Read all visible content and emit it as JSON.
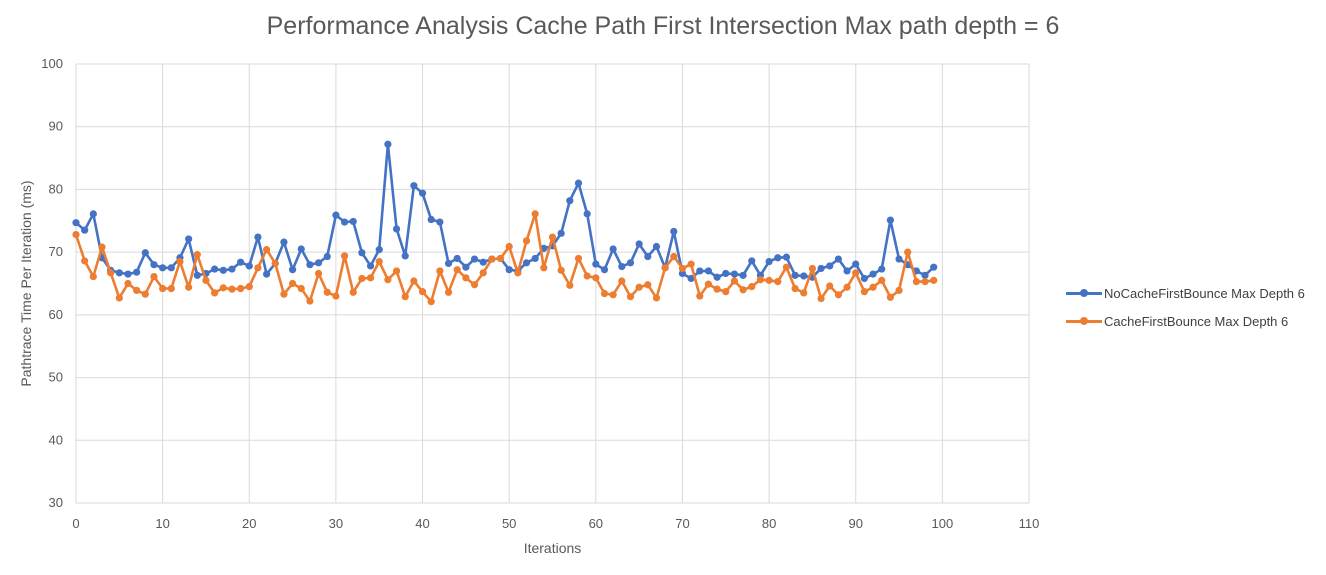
{
  "chart_data": {
    "type": "line",
    "title": "Performance Analysis Cache Path First Intersection Max path depth = 6",
    "xlabel": "Iterations",
    "ylabel": "Pathtrace Time Per Iteration (ms)",
    "xlim": [
      0,
      110
    ],
    "ylim": [
      30,
      100
    ],
    "xticks": [
      0,
      10,
      20,
      30,
      40,
      50,
      60,
      70,
      80,
      90,
      100,
      110
    ],
    "yticks": [
      30,
      40,
      50,
      60,
      70,
      80,
      90,
      100
    ],
    "grid": true,
    "legend_position": "right",
    "x": [
      0,
      1,
      2,
      3,
      4,
      5,
      6,
      7,
      8,
      9,
      10,
      11,
      12,
      13,
      14,
      15,
      16,
      17,
      18,
      19,
      20,
      21,
      22,
      23,
      24,
      25,
      26,
      27,
      28,
      29,
      30,
      31,
      32,
      33,
      34,
      35,
      36,
      37,
      38,
      39,
      40,
      41,
      42,
      43,
      44,
      45,
      46,
      47,
      48,
      49,
      50,
      51,
      52,
      53,
      54,
      55,
      56,
      57,
      58,
      59,
      60,
      61,
      62,
      63,
      64,
      65,
      66,
      67,
      68,
      69,
      70,
      71,
      72,
      73,
      74,
      75,
      76,
      77,
      78,
      79,
      80,
      81,
      82,
      83,
      84,
      85,
      86,
      87,
      88,
      89,
      90,
      91,
      92,
      93,
      94,
      95,
      96,
      97,
      98,
      99
    ],
    "series": [
      {
        "name": "NoCacheFirstBounce Max Depth 6",
        "color": "#4472C4",
        "values": [
          74.7,
          73.5,
          76.1,
          69.1,
          67.1,
          66.7,
          66.5,
          66.8,
          69.9,
          68.0,
          67.5,
          67.5,
          69.1,
          72.1,
          66.3,
          66.6,
          67.3,
          67.1,
          67.3,
          68.4,
          67.8,
          72.4,
          66.5,
          68.2,
          71.6,
          67.2,
          70.5,
          68.0,
          68.3,
          69.3,
          75.9,
          74.8,
          74.9,
          69.9,
          67.8,
          70.4,
          87.2,
          73.7,
          69.4,
          80.6,
          79.4,
          75.2,
          74.8,
          68.2,
          69.0,
          67.6,
          68.9,
          68.4,
          68.9,
          69.0,
          67.2,
          67.0,
          68.3,
          69.0,
          70.6,
          71.0,
          73.0,
          78.2,
          81.0,
          76.1,
          68.1,
          67.2,
          70.5,
          67.7,
          68.3,
          71.3,
          69.3,
          70.9,
          67.5,
          73.3,
          66.6,
          65.8,
          67.0,
          67.0,
          66.0,
          66.6,
          66.5,
          66.3,
          68.6,
          66.3,
          68.5,
          69.1,
          69.2,
          66.3,
          66.2,
          66.0,
          67.4,
          67.8,
          68.9,
          67.0,
          68.1,
          65.8,
          66.5,
          67.3,
          75.1,
          68.9,
          68.0,
          67.0,
          66.3,
          67.6
        ]
      },
      {
        "name": "CacheFirstBounce Max Depth 6",
        "color": "#ED7D31",
        "values": [
          72.8,
          68.6,
          66.1,
          70.8,
          66.7,
          62.7,
          65.0,
          63.9,
          63.3,
          66.1,
          64.2,
          64.2,
          68.5,
          64.4,
          69.6,
          65.5,
          63.5,
          64.3,
          64.1,
          64.2,
          64.5,
          67.5,
          70.4,
          68.2,
          63.3,
          65.0,
          64.2,
          62.2,
          66.6,
          63.6,
          63.0,
          69.4,
          63.6,
          65.8,
          65.9,
          68.5,
          65.6,
          67.0,
          62.9,
          65.4,
          63.7,
          62.1,
          67.0,
          63.6,
          67.2,
          65.9,
          64.8,
          66.7,
          68.9,
          69.0,
          70.9,
          66.7,
          71.8,
          76.1,
          67.5,
          72.4,
          67.1,
          64.7,
          69.0,
          66.2,
          65.9,
          63.4,
          63.2,
          65.4,
          62.9,
          64.4,
          64.8,
          62.7,
          67.5,
          69.3,
          67.4,
          68.1,
          63.0,
          64.9,
          64.1,
          63.7,
          65.4,
          64.0,
          64.5,
          65.6,
          65.5,
          65.3,
          67.6,
          64.2,
          63.5,
          67.4,
          62.6,
          64.6,
          63.2,
          64.4,
          66.7,
          63.7,
          64.4,
          65.5,
          62.8,
          63.9,
          70.0,
          65.3,
          65.3,
          65.5
        ]
      }
    ]
  }
}
